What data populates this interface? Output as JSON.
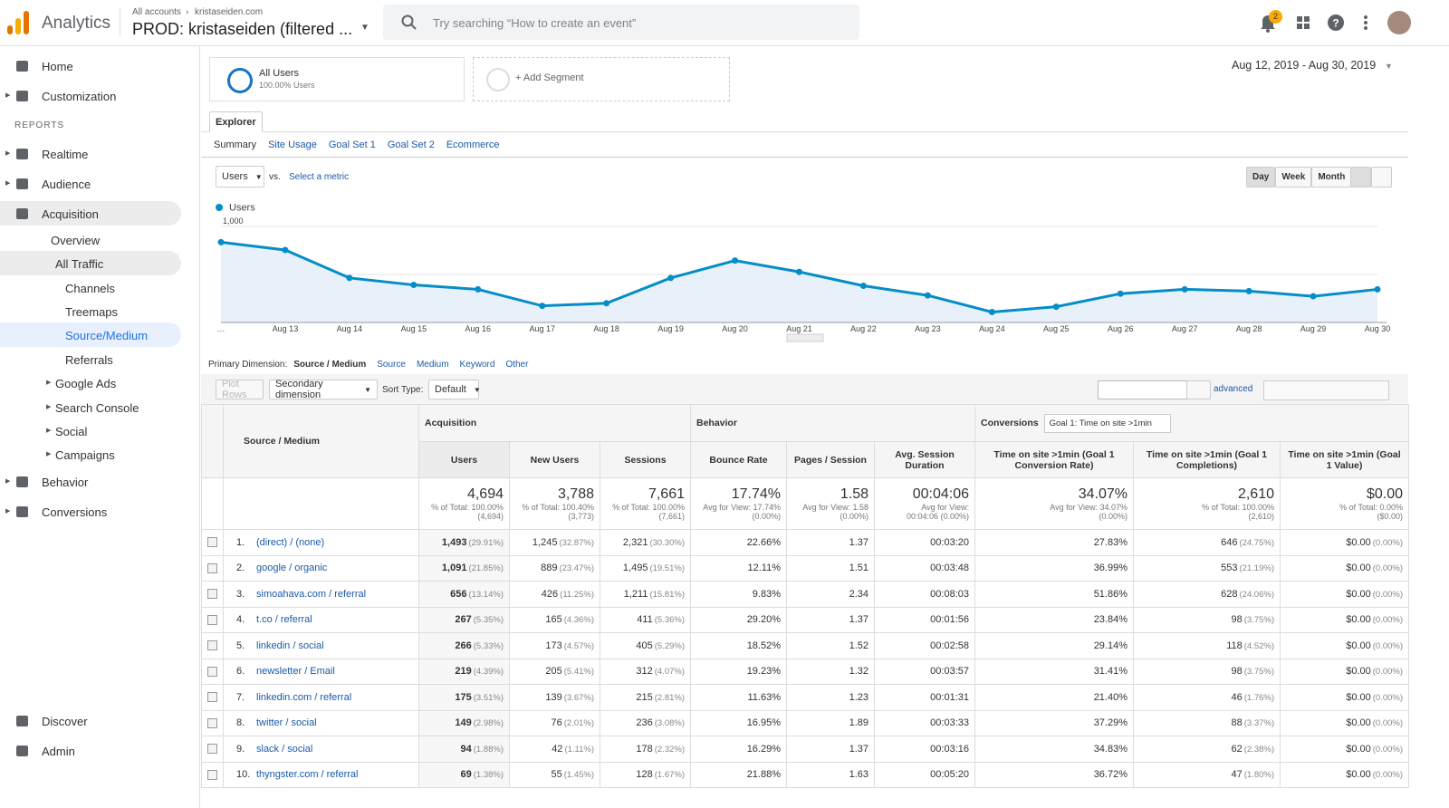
{
  "header": {
    "product": "Analytics",
    "breadcrumb": [
      "All accounts",
      "kristaseiden.com"
    ],
    "property": "PROD: kristaseiden (filtered ...",
    "search_placeholder": "Try searching “How to create an event”",
    "notifications": "2"
  },
  "sidebar": {
    "items": [
      "Home",
      "Customization",
      "REPORTS",
      "Realtime",
      "Audience",
      "Acquisition",
      "Overview",
      "All Traffic",
      "Channels",
      "Treemaps",
      "Source/Medium",
      "Referrals",
      "Google Ads",
      "Search Console",
      "Social",
      "Campaigns",
      "Behavior",
      "Conversions",
      "Discover",
      "Admin"
    ]
  },
  "segments": {
    "active": "All Users",
    "active_sub": "100.00% Users",
    "add": "+ Add Segment",
    "date_range": "Aug 12, 2019 - Aug 30, 2019"
  },
  "tabs": {
    "main": "Explorer",
    "sub": [
      "Summary",
      "Site Usage",
      "Goal Set 1",
      "Goal Set 2",
      "Ecommerce"
    ]
  },
  "metric_controls": {
    "metric": "Users",
    "vs": "vs.",
    "select": "Select a metric",
    "periods": [
      "Day",
      "Week",
      "Month"
    ]
  },
  "chart_data": {
    "type": "line",
    "categories": [
      "…",
      "Aug 13",
      "Aug 14",
      "Aug 15",
      "Aug 16",
      "Aug 17",
      "Aug 18",
      "Aug 19",
      "Aug 20",
      "Aug 21",
      "Aug 22",
      "Aug 23",
      "Aug 24",
      "Aug 25",
      "Aug 26",
      "Aug 27",
      "Aug 28",
      "Aug 29",
      "Aug 30"
    ],
    "series": [
      {
        "name": "Users",
        "color": "#058dc7",
        "values": [
          836,
          755,
          464,
          391,
          345,
          173,
          200,
          464,
          645,
          527,
          382,
          282,
          109,
          164,
          300,
          345,
          327,
          273,
          345
        ]
      }
    ],
    "ylim": [
      0,
      1000
    ],
    "yticks": [
      {
        "value": 1000,
        "label": "1,000"
      },
      500
    ],
    "grid": true
  },
  "dimension": {
    "label": "Primary Dimension:",
    "active": "Source / Medium",
    "options": [
      "Source",
      "Medium",
      "Keyword",
      "Other"
    ]
  },
  "toolbar": {
    "plot_rows": "Plot Rows",
    "secondary": "Secondary dimension",
    "sort_label": "Sort Type:",
    "sort": "Default",
    "advanced": "advanced"
  },
  "table": {
    "groups": {
      "dimension": "Source / Medium",
      "acquisition": "Acquisition",
      "behavior": "Behavior",
      "conversions": "Conversions",
      "goal": "Goal 1: Time on site >1min"
    },
    "columns": [
      "Users",
      "New Users",
      "Sessions",
      "Bounce Rate",
      "Pages / Session",
      "Avg. Session Duration",
      "Time on site >1min (Goal 1 Conversion Rate)",
      "Time on site >1min (Goal 1 Completions)",
      "Time on site >1min (Goal 1 Value)"
    ],
    "totals": [
      [
        "4,694",
        "% of Total: 100.00% (4,694)"
      ],
      [
        "3,788",
        "% of Total: 100.40% (3,773)"
      ],
      [
        "7,661",
        "% of Total: 100.00% (7,661)"
      ],
      [
        "17.74%",
        "Avg for View: 17.74% (0.00%)"
      ],
      [
        "1.58",
        "Avg for View: 1.58 (0.00%)"
      ],
      [
        "00:04:06",
        "Avg for View: 00:04:06 (0.00%)"
      ],
      [
        "34.07%",
        "Avg for View: 34.07% (0.00%)"
      ],
      [
        "2,610",
        "% of Total: 100.00% (2,610)"
      ],
      [
        "$0.00",
        "% of Total: 0.00% ($0.00)"
      ]
    ],
    "rows": [
      {
        "num": "1.",
        "source": "(direct) / (none)",
        "cells": [
          [
            "1,493",
            "(29.91%)"
          ],
          [
            "1,245",
            "(32.87%)"
          ],
          [
            "2,321",
            "(30.30%)"
          ],
          "22.66%",
          "1.37",
          "00:03:20",
          "27.83%",
          [
            "646",
            "(24.75%)"
          ],
          [
            "$0.00",
            "(0.00%)"
          ]
        ]
      },
      {
        "num": "2.",
        "source": "google / organic",
        "cells": [
          [
            "1,091",
            "(21.85%)"
          ],
          [
            "889",
            "(23.47%)"
          ],
          [
            "1,495",
            "(19.51%)"
          ],
          "12.11%",
          "1.51",
          "00:03:48",
          "36.99%",
          [
            "553",
            "(21.19%)"
          ],
          [
            "$0.00",
            "(0.00%)"
          ]
        ]
      },
      {
        "num": "3.",
        "source": "simoahava.com / referral",
        "cells": [
          [
            "656",
            "(13.14%)"
          ],
          [
            "426",
            "(11.25%)"
          ],
          [
            "1,211",
            "(15.81%)"
          ],
          "9.83%",
          "2.34",
          "00:08:03",
          "51.86%",
          [
            "628",
            "(24.06%)"
          ],
          [
            "$0.00",
            "(0.00%)"
          ]
        ]
      },
      {
        "num": "4.",
        "source": "t.co / referral",
        "cells": [
          [
            "267",
            "(5.35%)"
          ],
          [
            "165",
            "(4.36%)"
          ],
          [
            "411",
            "(5.36%)"
          ],
          "29.20%",
          "1.37",
          "00:01:56",
          "23.84%",
          [
            "98",
            "(3.75%)"
          ],
          [
            "$0.00",
            "(0.00%)"
          ]
        ]
      },
      {
        "num": "5.",
        "source": "linkedin / social",
        "cells": [
          [
            "266",
            "(5.33%)"
          ],
          [
            "173",
            "(4.57%)"
          ],
          [
            "405",
            "(5.29%)"
          ],
          "18.52%",
          "1.52",
          "00:02:58",
          "29.14%",
          [
            "118",
            "(4.52%)"
          ],
          [
            "$0.00",
            "(0.00%)"
          ]
        ]
      },
      {
        "num": "6.",
        "source": "newsletter / Email",
        "cells": [
          [
            "219",
            "(4.39%)"
          ],
          [
            "205",
            "(5.41%)"
          ],
          [
            "312",
            "(4.07%)"
          ],
          "19.23%",
          "1.32",
          "00:03:57",
          "31.41%",
          [
            "98",
            "(3.75%)"
          ],
          [
            "$0.00",
            "(0.00%)"
          ]
        ]
      },
      {
        "num": "7.",
        "source": "linkedin.com / referral",
        "cells": [
          [
            "175",
            "(3.51%)"
          ],
          [
            "139",
            "(3.67%)"
          ],
          [
            "215",
            "(2.81%)"
          ],
          "11.63%",
          "1.23",
          "00:01:31",
          "21.40%",
          [
            "46",
            "(1.76%)"
          ],
          [
            "$0.00",
            "(0.00%)"
          ]
        ]
      },
      {
        "num": "8.",
        "source": "twitter / social",
        "cells": [
          [
            "149",
            "(2.98%)"
          ],
          [
            "76",
            "(2.01%)"
          ],
          [
            "236",
            "(3.08%)"
          ],
          "16.95%",
          "1.89",
          "00:03:33",
          "37.29%",
          [
            "88",
            "(3.37%)"
          ],
          [
            "$0.00",
            "(0.00%)"
          ]
        ]
      },
      {
        "num": "9.",
        "source": "slack / social",
        "cells": [
          [
            "94",
            "(1.88%)"
          ],
          [
            "42",
            "(1.11%)"
          ],
          [
            "178",
            "(2.32%)"
          ],
          "16.29%",
          "1.37",
          "00:03:16",
          "34.83%",
          [
            "62",
            "(2.38%)"
          ],
          [
            "$0.00",
            "(0.00%)"
          ]
        ]
      },
      {
        "num": "10.",
        "source": "thyngster.com / referral",
        "cells": [
          [
            "69",
            "(1.38%)"
          ],
          [
            "55",
            "(1.45%)"
          ],
          [
            "128",
            "(1.67%)"
          ],
          "21.88%",
          "1.63",
          "00:05:20",
          "36.72%",
          [
            "47",
            "(1.80%)"
          ],
          [
            "$0.00",
            "(0.00%)"
          ]
        ]
      }
    ]
  }
}
